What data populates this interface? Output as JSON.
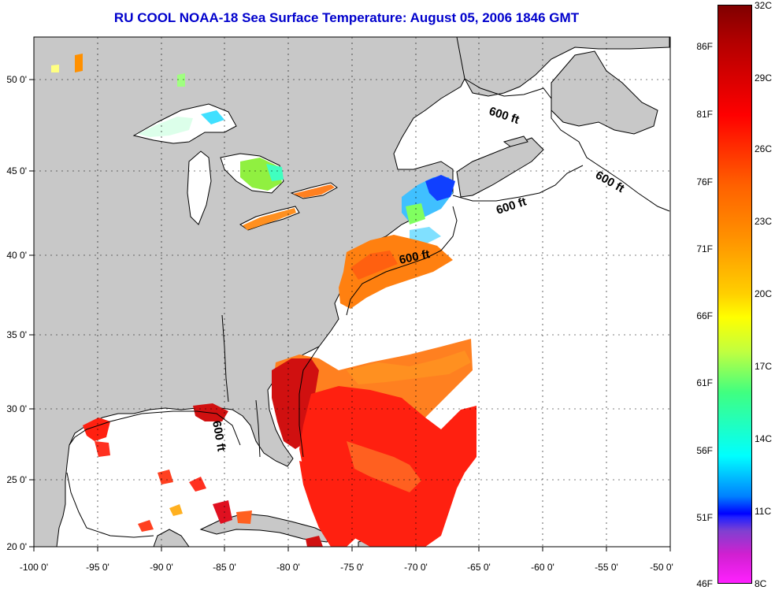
{
  "title": "RU COOL  NOAA-18  Sea Surface Temperature:  August 05, 2006 1846 GMT",
  "axes": {
    "lon_labels": [
      "-100 0'",
      "-95 0'",
      "-90 0'",
      "-85 0'",
      "-80 0'",
      "-75 0'",
      "-70 0'",
      "-65 0'",
      "-60 0'",
      "-55 0'",
      "-50 0'"
    ],
    "lat_labels": [
      "50 0'",
      "45 0'",
      "40 0'",
      "35 0'",
      "30 0'",
      "25 0'",
      "20 0'"
    ]
  },
  "contour_labels": [
    "600 ft",
    "600 ft",
    "600 ft",
    "600 ft",
    "600 ft"
  ],
  "colorbar": {
    "fahrenheit": [
      "86F",
      "81F",
      "76F",
      "71F",
      "66F",
      "61F",
      "56F",
      "51F",
      "46F"
    ],
    "celsius": [
      "32C",
      "29C",
      "26C",
      "23C",
      "20C",
      "17C",
      "14C",
      "11C",
      "8C"
    ]
  },
  "colors": {
    "land": "#c8c8c8",
    "ocean_no_data": "#ffffff",
    "title": "#0000cc"
  }
}
